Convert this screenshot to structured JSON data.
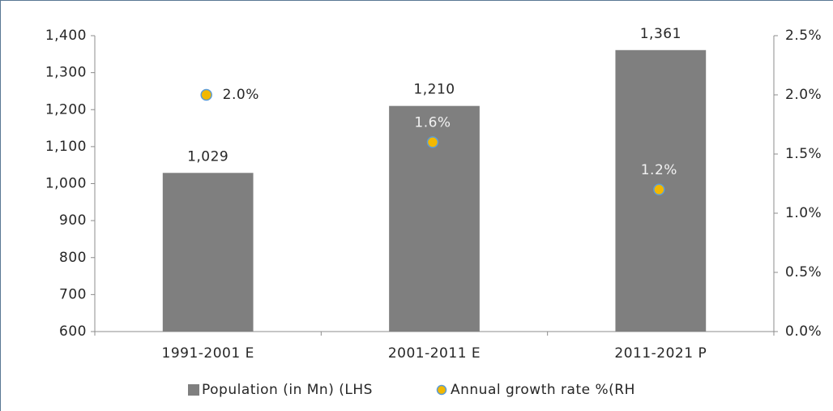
{
  "chart_data": {
    "type": "bar+scatter",
    "categories": [
      "1991-2001 E",
      "2001-2011 E",
      "2011-2021 P"
    ],
    "series": [
      {
        "name": "Population (in Mn) (LHS",
        "type": "bar",
        "color": "#7f7f7f",
        "values": [
          1029,
          1210,
          1361
        ],
        "value_labels": [
          "1,029",
          "1,210",
          "1,361"
        ]
      },
      {
        "name": "Annual growth rate %(RH",
        "type": "scatter",
        "axis": "y2",
        "color": "#f2b800",
        "values": [
          2.0,
          1.6,
          1.2
        ],
        "value_labels": [
          "2.0%",
          "1.6%",
          "1.2%"
        ]
      }
    ],
    "ylim": [
      600,
      1400
    ],
    "yticks": [
      600,
      700,
      800,
      900,
      {
        "value": 1000,
        "label": "1,000"
      },
      {
        "value": 1100,
        "label": "1,100"
      },
      {
        "value": 1200,
        "label": "1,200"
      },
      {
        "value": 1300,
        "label": "1,300"
      },
      {
        "value": 1400,
        "label": "1,400"
      }
    ],
    "y2lim": [
      0,
      2.5
    ],
    "y2ticks": [
      {
        "value": 0,
        "label": "0.0%"
      },
      {
        "value": 0.5,
        "label": "0.5%"
      },
      {
        "value": 1.0,
        "label": "1.0%"
      },
      {
        "value": 1.5,
        "label": "1.5%"
      },
      {
        "value": 2.0,
        "label": "2.0%"
      },
      {
        "value": 2.5,
        "label": "2.5%"
      }
    ],
    "legend": "bottom"
  }
}
